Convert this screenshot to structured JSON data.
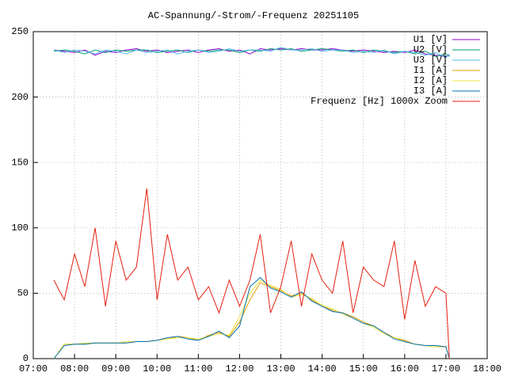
{
  "chart_data": {
    "type": "line",
    "title": "AC-Spannung/-Strom/-Frequenz 20251105",
    "x": [
      "07:30",
      "07:45",
      "08:00",
      "08:15",
      "08:30",
      "08:45",
      "09:00",
      "09:15",
      "09:30",
      "09:45",
      "10:00",
      "10:15",
      "10:30",
      "10:45",
      "11:00",
      "11:15",
      "11:30",
      "11:45",
      "12:00",
      "12:15",
      "12:30",
      "12:45",
      "13:00",
      "13:15",
      "13:30",
      "13:45",
      "14:00",
      "14:15",
      "14:30",
      "14:45",
      "15:00",
      "15:15",
      "15:30",
      "15:45",
      "16:00",
      "16:15",
      "16:30",
      "16:45",
      "17:00",
      "17:05"
    ],
    "series": [
      {
        "name": "U1 [V]",
        "color": "#9400d3",
        "values": [
          236,
          235,
          234,
          236,
          232,
          235,
          234,
          236,
          237,
          235,
          236,
          234,
          235,
          236,
          234,
          236,
          237,
          235,
          236,
          233,
          237,
          236,
          237,
          236,
          237,
          236,
          236,
          237,
          236,
          235,
          236,
          235,
          234,
          235,
          234,
          236,
          233,
          232,
          231,
          232
        ]
      },
      {
        "name": "U2 [V]",
        "color": "#009e73",
        "values": [
          235,
          236,
          235,
          233,
          236,
          234,
          236,
          235,
          236,
          236,
          234,
          235,
          236,
          234,
          236,
          235,
          236,
          236,
          234,
          236,
          235,
          237,
          236,
          237,
          235,
          236,
          237,
          236,
          235,
          236,
          234,
          236,
          235,
          234,
          235,
          233,
          235,
          231,
          233,
          231
        ]
      },
      {
        "name": "U3 [V]",
        "color": "#56b4e9",
        "values": [
          236,
          234,
          236,
          235,
          233,
          236,
          235,
          233,
          236,
          234,
          235,
          236,
          233,
          235,
          236,
          234,
          235,
          237,
          235,
          236,
          236,
          235,
          238,
          236,
          236,
          237,
          235,
          236,
          236,
          234,
          235,
          234,
          236,
          233,
          235,
          234,
          232,
          234,
          230,
          233
        ]
      },
      {
        "name": "I1 [A]",
        "color": "#e69f00",
        "values": [
          0,
          11,
          11,
          11,
          12,
          12,
          12,
          12,
          13,
          13,
          14,
          15,
          17,
          16,
          14,
          18,
          20,
          17,
          28,
          45,
          58,
          55,
          52,
          48,
          50,
          45,
          40,
          37,
          35,
          32,
          28,
          25,
          20,
          16,
          14,
          11,
          10,
          10,
          9,
          0
        ]
      },
      {
        "name": "I2 [A]",
        "color": "#f0e442",
        "values": [
          0,
          11,
          11,
          12,
          12,
          12,
          12,
          13,
          13,
          13,
          14,
          15,
          16,
          16,
          15,
          17,
          19,
          18,
          32,
          50,
          60,
          56,
          53,
          47,
          49,
          46,
          41,
          38,
          34,
          31,
          27,
          24,
          19,
          16,
          13,
          11,
          10,
          9,
          9,
          0
        ]
      },
      {
        "name": "I3 [A]",
        "color": "#0072b2",
        "values": [
          0,
          10,
          11,
          11,
          12,
          12,
          12,
          12,
          13,
          13,
          14,
          16,
          17,
          15,
          14,
          17,
          21,
          16,
          25,
          55,
          62,
          54,
          51,
          47,
          51,
          44,
          40,
          36,
          35,
          31,
          27,
          25,
          20,
          15,
          13,
          11,
          10,
          10,
          9,
          0
        ]
      },
      {
        "name": "Frequenz [Hz] 1000x Zoom",
        "color": "#e51e10",
        "values": [
          60,
          45,
          80,
          55,
          100,
          40,
          90,
          60,
          70,
          130,
          45,
          95,
          60,
          70,
          45,
          55,
          35,
          60,
          40,
          60,
          95,
          35,
          55,
          90,
          40,
          80,
          60,
          50,
          90,
          35,
          70,
          60,
          55,
          90,
          30,
          75,
          40,
          55,
          50,
          0
        ]
      }
    ],
    "xlim": [
      "07:00",
      "18:00"
    ],
    "xticks": [
      "07:00",
      "08:00",
      "09:00",
      "10:00",
      "11:00",
      "12:00",
      "13:00",
      "14:00",
      "15:00",
      "16:00",
      "17:00",
      "18:00"
    ],
    "ylim": [
      0,
      250
    ],
    "yticks": [
      0,
      50,
      100,
      150,
      200,
      250
    ],
    "grid": true,
    "legend": "top-right"
  }
}
